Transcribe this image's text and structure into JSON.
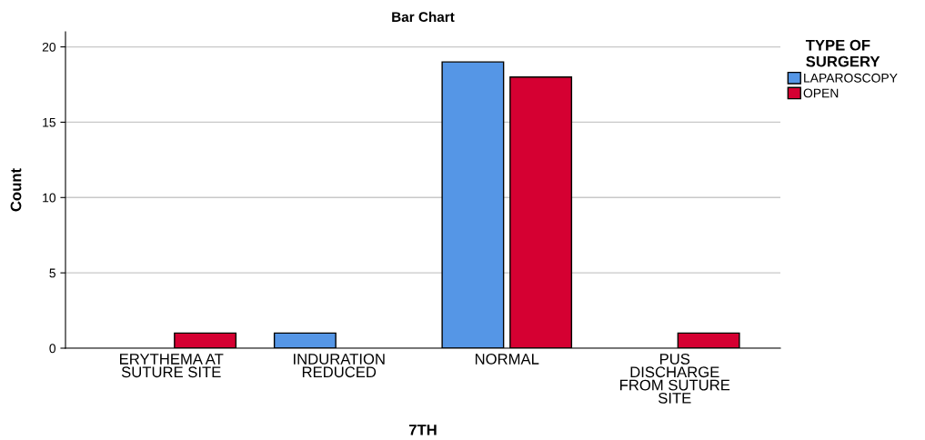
{
  "chart_data": {
    "type": "bar",
    "title": "Bar Chart",
    "xlabel": "7TH",
    "ylabel": "Count",
    "legend_title": "TYPE OF\nSURGERY",
    "categories": [
      "ERYTHEMA AT\nSUTURE SITE",
      "INDURATION\nREDUCED",
      "NORMAL",
      "PUS\nDISCHARGE\nFROM SUTURE\nSITE"
    ],
    "series": [
      {
        "name": "LAPAROSCOPY",
        "color": "#5596e6",
        "values": [
          null,
          1,
          19,
          null
        ]
      },
      {
        "name": "OPEN",
        "color": "#d50032",
        "values": [
          1,
          null,
          18,
          1
        ]
      }
    ],
    "ylim": [
      0,
      21
    ],
    "yticks": [
      0,
      5,
      10,
      15,
      20
    ],
    "grid": "y",
    "legend": "top right"
  }
}
